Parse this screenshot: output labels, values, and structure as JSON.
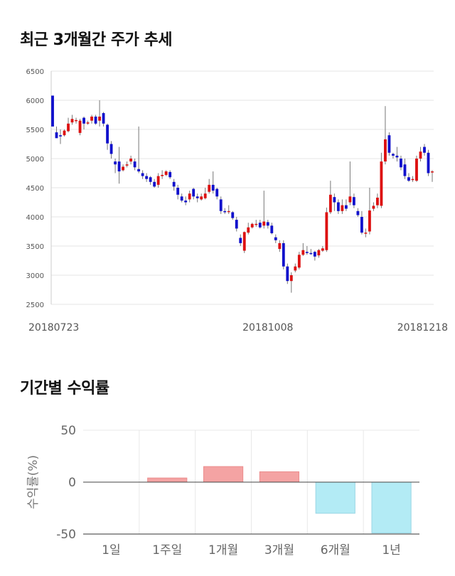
{
  "titles": {
    "price_trend": "최근 3개월간 주가 추세",
    "period_returns": "기간별 수익률"
  },
  "chart_data": [
    {
      "type": "candlestick",
      "y_ticks": [
        2500,
        3000,
        3500,
        4000,
        4500,
        5000,
        5500,
        6000,
        6500
      ],
      "ylim": [
        2500,
        6500
      ],
      "x_tick_labels": [
        {
          "label": "20180723",
          "index": 0
        },
        {
          "label": "20181008",
          "index": 55
        },
        {
          "label": "20181218",
          "index": 106
        }
      ],
      "grid": true,
      "colors": {
        "up": "#dd1111",
        "down": "#1111cc",
        "wick": "#777777"
      },
      "candles": [
        [
          6080,
          5550,
          6080,
          5550
        ],
        [
          5450,
          5350,
          5550,
          5400
        ],
        [
          5400,
          5380,
          5500,
          5250
        ],
        [
          5400,
          5480,
          5500,
          5380
        ],
        [
          5470,
          5600,
          5700,
          5450
        ],
        [
          5620,
          5680,
          5750,
          5580
        ],
        [
          5650,
          5660,
          5700,
          5600
        ],
        [
          5440,
          5650,
          5680,
          5400
        ],
        [
          5700,
          5600,
          5720,
          5500
        ],
        [
          5600,
          5620,
          5650,
          5580
        ],
        [
          5650,
          5720,
          5750,
          5600
        ],
        [
          5720,
          5600,
          5750,
          5580
        ],
        [
          5650,
          5720,
          6000,
          5550
        ],
        [
          5780,
          5600,
          5800,
          5550
        ],
        [
          5580,
          5260,
          5600,
          5150
        ],
        [
          5250,
          5080,
          5300,
          5000
        ],
        [
          4950,
          4900,
          5000,
          4750
        ],
        [
          4950,
          4780,
          5200,
          4570
        ],
        [
          4800,
          4860,
          4900,
          4780
        ],
        [
          4880,
          4900,
          4950,
          4850
        ],
        [
          4950,
          5000,
          5050,
          4900
        ],
        [
          4950,
          4850,
          5000,
          4800
        ],
        [
          4820,
          4780,
          5550,
          4750
        ],
        [
          4750,
          4700,
          4800,
          4650
        ],
        [
          4700,
          4650,
          4750,
          4600
        ],
        [
          4680,
          4600,
          4700,
          4550
        ],
        [
          4600,
          4520,
          4650,
          4500
        ],
        [
          4550,
          4700,
          4750,
          4500
        ],
        [
          4700,
          4720,
          4800,
          4650
        ],
        [
          4720,
          4780,
          4800,
          4700
        ],
        [
          4770,
          4680,
          4800,
          4650
        ],
        [
          4600,
          4520,
          4650,
          4450
        ],
        [
          4500,
          4380,
          4550,
          4300
        ],
        [
          4350,
          4280,
          4400,
          4250
        ],
        [
          4280,
          4250,
          4350,
          4200
        ],
        [
          4300,
          4400,
          4450,
          4250
        ],
        [
          4480,
          4350,
          4500,
          4300
        ],
        [
          4350,
          4320,
          4400,
          4250
        ],
        [
          4300,
          4350,
          4400,
          4280
        ],
        [
          4320,
          4400,
          4500,
          4300
        ],
        [
          4430,
          4550,
          4650,
          4400
        ],
        [
          4550,
          4450,
          4780,
          4400
        ],
        [
          4480,
          4350,
          4500,
          4300
        ],
        [
          4300,
          4100,
          4350,
          4050
        ],
        [
          4100,
          4080,
          4150,
          4050
        ],
        [
          4100,
          4100,
          4200,
          4050
        ],
        [
          4080,
          3980,
          4100,
          3950
        ],
        [
          3950,
          3800,
          4000,
          3750
        ],
        [
          3640,
          3550,
          3700,
          3500
        ],
        [
          3420,
          3740,
          3750,
          3380
        ],
        [
          3730,
          3820,
          3900,
          3700
        ],
        [
          3820,
          3880,
          3900,
          3800
        ],
        [
          3870,
          3880,
          3950,
          3830
        ],
        [
          3900,
          3820,
          3950,
          3800
        ],
        [
          3850,
          3920,
          4450,
          3800
        ],
        [
          3910,
          3850,
          3950,
          3800
        ],
        [
          3850,
          3720,
          3900,
          3700
        ],
        [
          3650,
          3600,
          3700,
          3550
        ],
        [
          3450,
          3550,
          3600,
          3400
        ],
        [
          3550,
          3150,
          3600,
          3100
        ],
        [
          3150,
          2900,
          3200,
          2850
        ],
        [
          2900,
          3000,
          3050,
          2700
        ],
        [
          3080,
          3150,
          3200,
          3050
        ],
        [
          3130,
          3350,
          3400,
          3100
        ],
        [
          3350,
          3430,
          3550,
          3330
        ],
        [
          3400,
          3380,
          3500,
          3350
        ],
        [
          3380,
          3370,
          3450,
          3350
        ],
        [
          3400,
          3320,
          3420,
          3250
        ],
        [
          3340,
          3430,
          3450,
          3300
        ],
        [
          3420,
          3460,
          3500,
          3400
        ],
        [
          3430,
          4080,
          4160,
          3400
        ],
        [
          4080,
          4380,
          4620,
          4050
        ],
        [
          4340,
          4250,
          4400,
          4100
        ],
        [
          4250,
          4100,
          4300,
          4050
        ],
        [
          4100,
          4200,
          4300,
          4050
        ],
        [
          4200,
          4140,
          4300,
          4100
        ],
        [
          4250,
          4350,
          4950,
          4200
        ],
        [
          4340,
          4200,
          4400,
          4150
        ],
        [
          4100,
          4030,
          4150,
          4000
        ],
        [
          4000,
          3730,
          4100,
          3700
        ],
        [
          3730,
          3730,
          3800,
          3650
        ],
        [
          3750,
          4110,
          4500,
          3700
        ],
        [
          4140,
          4190,
          4250,
          4100
        ],
        [
          4200,
          4330,
          4400,
          4150
        ],
        [
          4190,
          4950,
          5100,
          4150
        ],
        [
          4950,
          5330,
          5900,
          4900
        ],
        [
          5400,
          5100,
          5450,
          5050
        ],
        [
          5080,
          5050,
          5100,
          5000
        ],
        [
          5050,
          5020,
          5200,
          4950
        ],
        [
          5000,
          4850,
          5050,
          4800
        ],
        [
          4900,
          4700,
          5000,
          4650
        ],
        [
          4680,
          4620,
          4750,
          4600
        ],
        [
          4650,
          4650,
          4700,
          4600
        ],
        [
          4620,
          5000,
          5050,
          4600
        ],
        [
          5000,
          5120,
          5200,
          4950
        ],
        [
          5200,
          5100,
          5250,
          5050
        ],
        [
          5100,
          4750,
          5150,
          4700
        ],
        [
          4780,
          4780,
          4800,
          4600
        ]
      ]
    },
    {
      "type": "bar",
      "categories": [
        "1일",
        "1주일",
        "1개월",
        "3개월",
        "6개월",
        "1년"
      ],
      "values": [
        0,
        4,
        15,
        10,
        -30,
        -49
      ],
      "y_ticks": [
        50,
        0,
        -50
      ],
      "ylim": [
        -50,
        50
      ],
      "ylabel": "수익률(%)",
      "grid": true,
      "colors": {
        "positive_fill": "#f4a3a3",
        "positive_stroke": "#ec8d8d",
        "negative_fill": "#b3ebf5",
        "negative_stroke": "#9ad6e4"
      }
    }
  ]
}
